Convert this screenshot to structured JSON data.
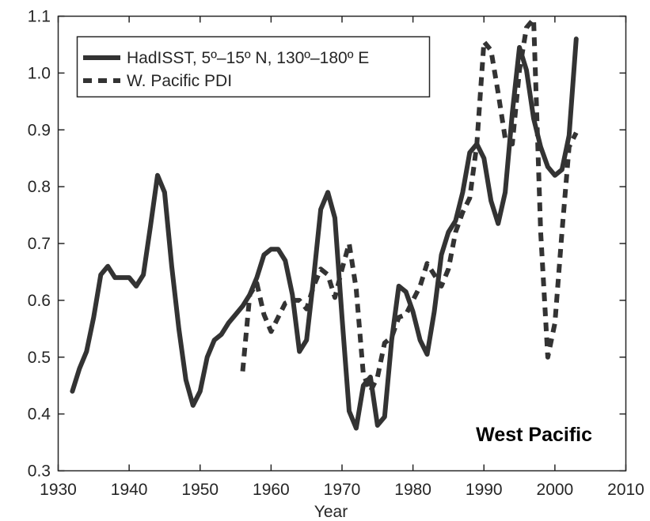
{
  "chart_data": {
    "type": "line",
    "title": "",
    "xlabel": "Year",
    "ylabel": "",
    "xlim": [
      1930,
      2010
    ],
    "ylim": [
      0.3,
      1.1
    ],
    "x_ticks": [
      1930,
      1940,
      1950,
      1960,
      1970,
      1980,
      1990,
      2000,
      2010
    ],
    "y_ticks": [
      0.3,
      0.4,
      0.5,
      0.6,
      0.7,
      0.8,
      0.9,
      1.0,
      1.1
    ],
    "x_tick_labels": [
      "1930",
      "1940",
      "1950",
      "1960",
      "1970",
      "1980",
      "1990",
      "2000",
      "2010"
    ],
    "y_tick_labels": [
      "0.3",
      "0.4",
      "0.5",
      "0.6",
      "0.7",
      "0.8",
      "0.9",
      "1.0",
      "1.1"
    ],
    "grid": false,
    "legend_position": "top-left",
    "annotation": "West Pacific",
    "series": [
      {
        "name": "HadISST, 5º–15º N, 130º–180º E",
        "style": "solid",
        "color": "#333333",
        "points": [
          [
            1932,
            0.44
          ],
          [
            1933,
            0.48
          ],
          [
            1934,
            0.51
          ],
          [
            1935,
            0.57
          ],
          [
            1936,
            0.645
          ],
          [
            1937,
            0.66
          ],
          [
            1938,
            0.64
          ],
          [
            1939,
            0.64
          ],
          [
            1940,
            0.64
          ],
          [
            1941,
            0.625
          ],
          [
            1942,
            0.645
          ],
          [
            1943,
            0.73
          ],
          [
            1944,
            0.82
          ],
          [
            1945,
            0.79
          ],
          [
            1946,
            0.66
          ],
          [
            1947,
            0.55
          ],
          [
            1948,
            0.46
          ],
          [
            1949,
            0.415
          ],
          [
            1950,
            0.44
          ],
          [
            1951,
            0.5
          ],
          [
            1952,
            0.53
          ],
          [
            1953,
            0.54
          ],
          [
            1954,
            0.56
          ],
          [
            1955,
            0.575
          ],
          [
            1956,
            0.59
          ],
          [
            1957,
            0.61
          ],
          [
            1958,
            0.64
          ],
          [
            1959,
            0.68
          ],
          [
            1960,
            0.69
          ],
          [
            1961,
            0.69
          ],
          [
            1962,
            0.67
          ],
          [
            1963,
            0.61
          ],
          [
            1964,
            0.51
          ],
          [
            1965,
            0.53
          ],
          [
            1966,
            0.64
          ],
          [
            1967,
            0.76
          ],
          [
            1968,
            0.79
          ],
          [
            1969,
            0.745
          ],
          [
            1970,
            0.57
          ],
          [
            1971,
            0.405
          ],
          [
            1972,
            0.375
          ],
          [
            1973,
            0.45
          ],
          [
            1974,
            0.465
          ],
          [
            1975,
            0.38
          ],
          [
            1976,
            0.395
          ],
          [
            1977,
            0.53
          ],
          [
            1978,
            0.625
          ],
          [
            1979,
            0.615
          ],
          [
            1980,
            0.58
          ],
          [
            1981,
            0.53
          ],
          [
            1982,
            0.505
          ],
          [
            1983,
            0.58
          ],
          [
            1984,
            0.68
          ],
          [
            1985,
            0.72
          ],
          [
            1986,
            0.74
          ],
          [
            1987,
            0.79
          ],
          [
            1988,
            0.86
          ],
          [
            1989,
            0.875
          ],
          [
            1990,
            0.85
          ],
          [
            1991,
            0.775
          ],
          [
            1992,
            0.735
          ],
          [
            1993,
            0.79
          ],
          [
            1994,
            0.93
          ],
          [
            1995,
            1.045
          ],
          [
            1996,
            1.005
          ],
          [
            1997,
            0.92
          ],
          [
            1998,
            0.87
          ],
          [
            1999,
            0.835
          ],
          [
            2000,
            0.82
          ],
          [
            2001,
            0.83
          ],
          [
            2002,
            0.89
          ],
          [
            2003,
            1.06
          ]
        ]
      },
      {
        "name": "W. Pacific PDI",
        "style": "dashed",
        "color": "#333333",
        "points": [
          [
            1956,
            0.475
          ],
          [
            1957,
            0.61
          ],
          [
            1958,
            0.63
          ],
          [
            1959,
            0.575
          ],
          [
            1960,
            0.545
          ],
          [
            1961,
            0.57
          ],
          [
            1962,
            0.595
          ],
          [
            1963,
            0.6
          ],
          [
            1964,
            0.6
          ],
          [
            1965,
            0.585
          ],
          [
            1966,
            0.625
          ],
          [
            1967,
            0.655
          ],
          [
            1968,
            0.645
          ],
          [
            1969,
            0.605
          ],
          [
            1970,
            0.655
          ],
          [
            1971,
            0.7
          ],
          [
            1972,
            0.62
          ],
          [
            1973,
            0.47
          ],
          [
            1974,
            0.44
          ],
          [
            1975,
            0.465
          ],
          [
            1976,
            0.525
          ],
          [
            1977,
            0.535
          ],
          [
            1978,
            0.57
          ],
          [
            1979,
            0.575
          ],
          [
            1980,
            0.6
          ],
          [
            1981,
            0.625
          ],
          [
            1982,
            0.665
          ],
          [
            1983,
            0.645
          ],
          [
            1984,
            0.625
          ],
          [
            1985,
            0.655
          ],
          [
            1986,
            0.72
          ],
          [
            1987,
            0.755
          ],
          [
            1988,
            0.78
          ],
          [
            1989,
            0.875
          ],
          [
            1990,
            1.055
          ],
          [
            1991,
            1.04
          ],
          [
            1992,
            0.965
          ],
          [
            1993,
            0.885
          ],
          [
            1994,
            0.875
          ],
          [
            1995,
            1.005
          ],
          [
            1996,
            1.08
          ],
          [
            1997,
            1.095
          ],
          [
            1998,
            0.72
          ],
          [
            1999,
            0.5
          ],
          [
            2000,
            0.56
          ],
          [
            2001,
            0.72
          ],
          [
            2002,
            0.87
          ],
          [
            2003,
            0.895
          ]
        ]
      }
    ]
  }
}
